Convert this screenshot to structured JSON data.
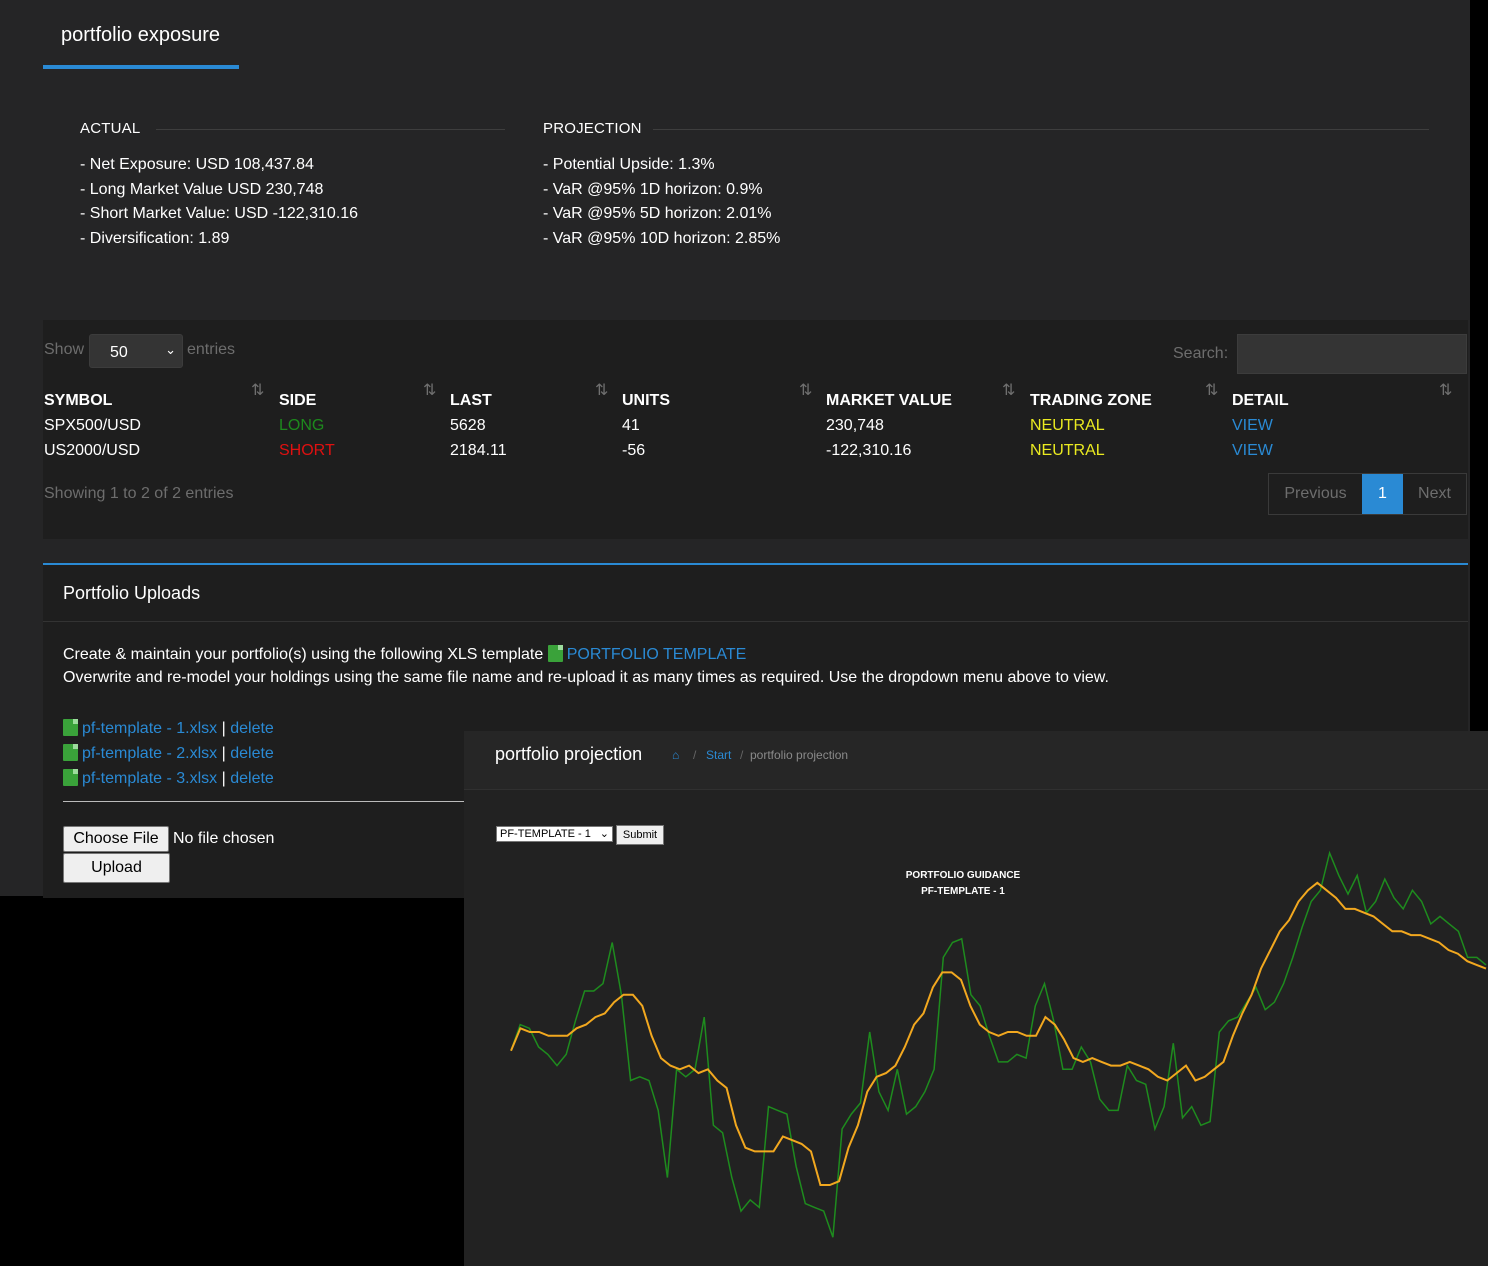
{
  "tab": {
    "label": "portfolio exposure"
  },
  "actual": {
    "heading": "ACTUAL",
    "items": [
      "- Net Exposure: USD 108,437.84",
      "- Long Market Value USD 230,748",
      "- Short Market Value: USD -122,310.16",
      "- Diversification: 1.89"
    ]
  },
  "projection": {
    "heading": "PROJECTION",
    "items": [
      "- Potential Upside: 1.3%",
      "- VaR @95% 1D horizon: 0.9%",
      "- VaR @95% 5D horizon: 2.01%",
      "- VaR @95% 10D horizon: 2.85%"
    ]
  },
  "table": {
    "show_label": "Show",
    "entries_label": "entries",
    "length_value": "50",
    "search_label": "Search:",
    "columns": [
      "SYMBOL",
      "SIDE",
      "LAST",
      "UNITS",
      "MARKET VALUE",
      "TRADING ZONE",
      "DETAIL"
    ],
    "rows": [
      [
        "SPX500/USD",
        "LONG",
        "5628",
        "41",
        "230,748",
        "NEUTRAL",
        "VIEW"
      ],
      [
        "US2000/USD",
        "SHORT",
        "2184.11",
        "-56",
        "-122,310.16",
        "NEUTRAL",
        "VIEW"
      ]
    ],
    "info": "Showing 1 to 2 of 2 entries",
    "pager": {
      "previous": "Previous",
      "page": "1",
      "next": "Next"
    }
  },
  "uploads": {
    "title": "Portfolio Uploads",
    "line1": "Create & maintain your portfolio(s) using the following XLS template",
    "template_link": "PORTFOLIO TEMPLATE",
    "line2": "Overwrite and re-model your holdings using the same file name and re-upload it as many times as required. Use the dropdown menu above to view.",
    "files": [
      {
        "name": "pf-template - 1.xlsx",
        "sep": "|",
        "action": "delete"
      },
      {
        "name": "pf-template - 2.xlsx",
        "sep": "|",
        "action": "delete"
      },
      {
        "name": "pf-template - 3.xlsx",
        "sep": "|",
        "action": "delete"
      }
    ],
    "choose_file": "Choose File",
    "no_file": "No file chosen",
    "upload": "Upload"
  },
  "proj_window": {
    "title": "portfolio projection",
    "breadcrumb": {
      "home_icon": "home-icon",
      "sep": "/",
      "start": "Start",
      "current": "portfolio projection"
    },
    "select_value": "PF-TEMPLATE - 1",
    "submit": "Submit"
  },
  "chart_data": {
    "type": "line",
    "title": "PORTFOLIO GUIDANCE",
    "subtitle": "PF-TEMPLATE - 1",
    "xlabel": "",
    "ylabel": "",
    "ylim": [
      0,
      100
    ],
    "grid": false,
    "series": [
      {
        "color": "#1e8c1e",
        "values": [
          47,
          54,
          53,
          48,
          46,
          43,
          46,
          55,
          63,
          63,
          65,
          76,
          62,
          39,
          40,
          39,
          31,
          13,
          42,
          40,
          42,
          56,
          27,
          25,
          13,
          4,
          7,
          5,
          32,
          31,
          30,
          16,
          6,
          5,
          4,
          -3,
          26,
          30,
          33,
          52,
          36,
          31,
          42,
          30,
          32,
          36,
          42,
          72,
          76,
          77,
          62,
          59,
          51,
          44,
          44,
          46,
          45,
          59,
          65,
          55,
          42,
          42,
          48,
          44,
          34,
          31,
          31,
          43,
          39,
          38,
          26,
          32,
          49,
          29,
          32,
          27,
          28,
          52,
          55,
          56,
          60,
          64,
          58,
          60,
          65,
          72,
          80,
          87,
          90,
          100,
          94,
          89,
          94,
          84,
          87,
          93,
          88,
          85,
          90,
          87,
          81,
          83,
          81,
          79,
          72,
          72,
          70
        ]
      },
      {
        "color": "#f2a81f",
        "values": [
          47,
          53,
          52,
          52,
          51,
          51,
          51,
          53,
          54,
          56,
          57,
          60,
          62,
          62,
          59,
          51,
          45,
          43,
          42,
          43,
          41,
          42,
          39,
          37,
          27,
          21,
          20,
          20,
          20,
          24,
          23,
          22,
          20,
          11,
          11,
          12,
          21,
          27,
          36,
          40,
          41,
          43,
          48,
          54,
          57,
          64,
          68,
          68,
          66,
          59,
          54,
          52,
          51,
          52,
          52,
          51,
          51,
          56,
          54,
          50,
          45,
          44,
          45,
          44,
          43,
          43,
          44,
          43,
          42,
          40,
          39,
          41,
          43,
          39,
          40,
          42,
          44,
          51,
          57,
          62,
          69,
          74,
          79,
          82,
          87,
          90,
          92,
          90,
          88,
          85,
          85,
          84,
          83,
          81,
          79,
          79,
          78,
          78,
          77,
          76,
          74,
          73,
          71,
          70,
          69
        ]
      }
    ]
  }
}
